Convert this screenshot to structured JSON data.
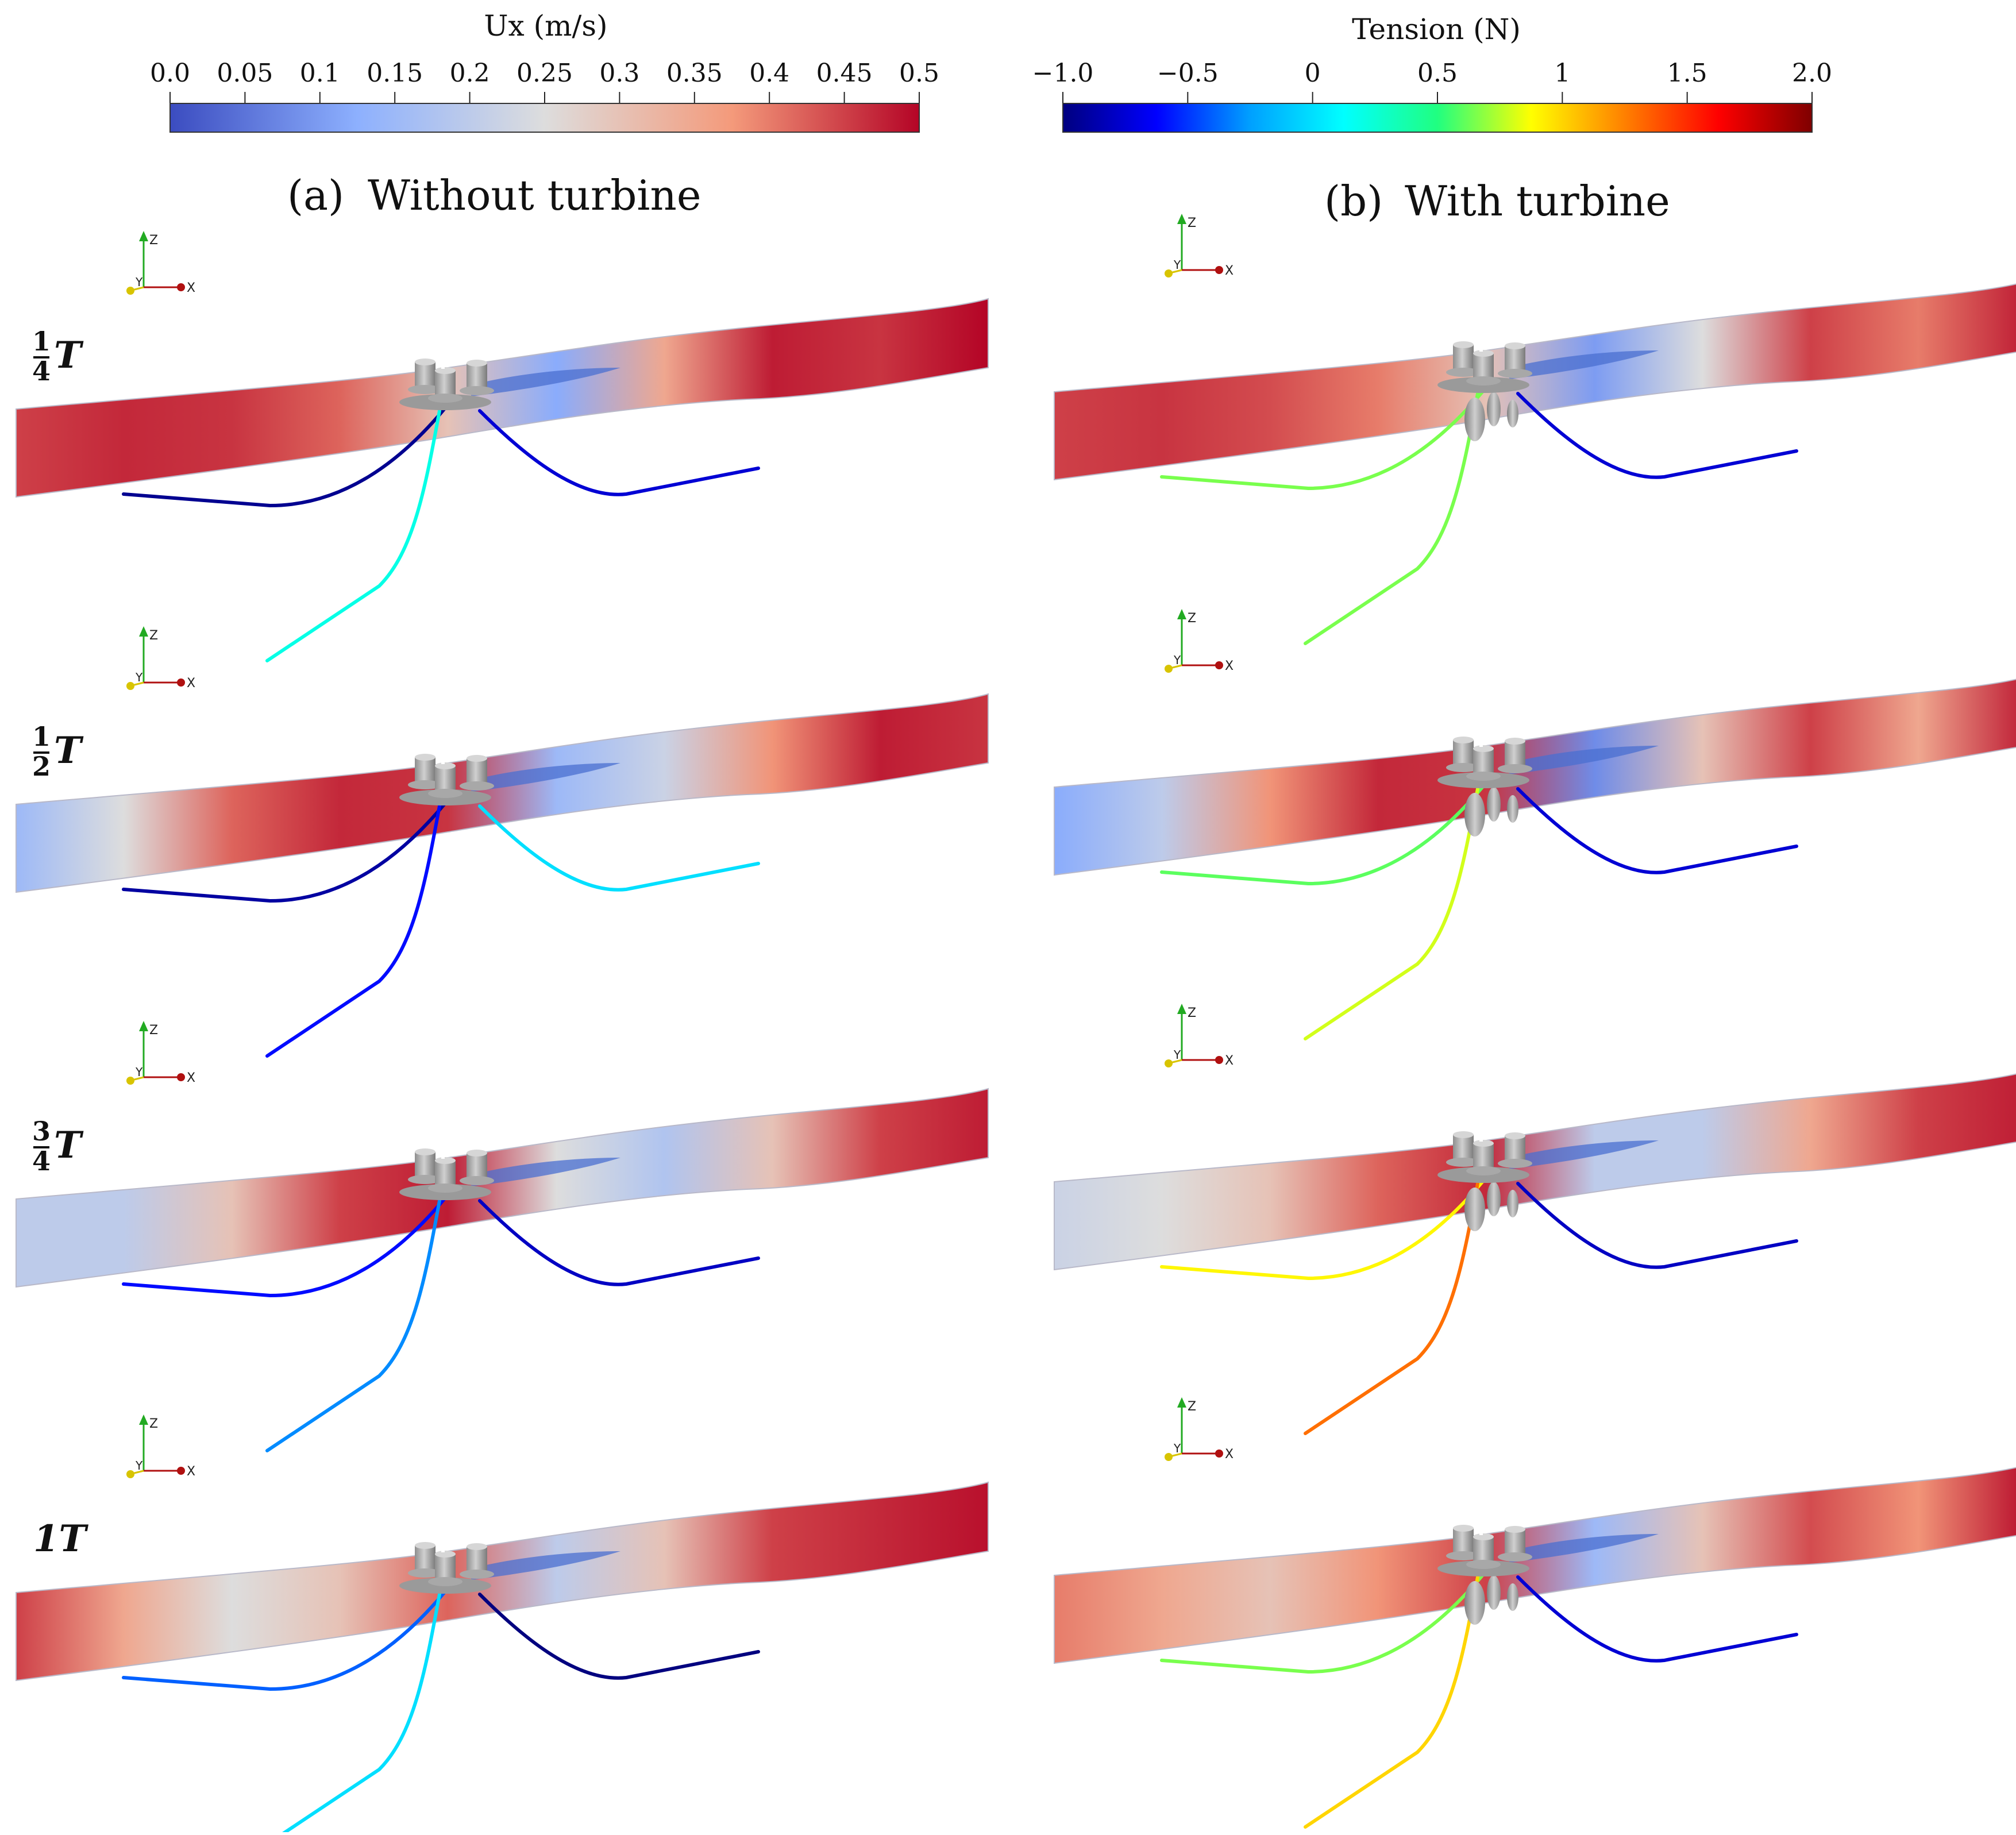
{
  "colorbars": [
    {
      "title": "Ux (m/s)",
      "ticks": [
        "0.0",
        "0.05",
        "0.1",
        "0.15",
        "0.2",
        "0.25",
        "0.3",
        "0.35",
        "0.4",
        "0.45",
        "0.5"
      ],
      "range": [
        0,
        0.5
      ],
      "colormap": "cool-to-warm",
      "stops": [
        "#3b4cc0",
        "#8db0fe",
        "#dddddd",
        "#f49a7b",
        "#b40426"
      ]
    },
    {
      "title": "Tension (N)",
      "ticks": [
        "−1.0",
        "−0.5",
        "0",
        "0.5",
        "1",
        "1.5",
        "2.0"
      ],
      "range": [
        -1.0,
        2.0
      ],
      "colormap": "jet",
      "stops": [
        "#00007f",
        "#0000ff",
        "#00a0ff",
        "#00ffff",
        "#20ff80",
        "#ffff00",
        "#ff8000",
        "#ff0000",
        "#7f0000"
      ]
    }
  ],
  "panels": [
    {
      "label": "(a)",
      "title": "Without turbine",
      "turbine": false,
      "snapshots": [
        {
          "time_num": "1",
          "time_den": "4",
          "suffix": "T",
          "line_tension": [
            -0.95,
            0.2,
            -0.6,
            -0.75
          ]
        },
        {
          "time_num": "1",
          "time_den": "2",
          "suffix": "T",
          "line_tension": [
            -0.9,
            -0.6,
            -0.7,
            0.0
          ]
        },
        {
          "time_num": "3",
          "time_den": "4",
          "suffix": "T",
          "line_tension": [
            -0.6,
            -0.3,
            -0.3,
            -0.8
          ]
        },
        {
          "time_num": "",
          "time_den": "",
          "suffix": "1T",
          "line_tension": [
            -0.4,
            0.0,
            -0.1,
            -1.0
          ]
        }
      ]
    },
    {
      "label": "(b)",
      "title": "With turbine",
      "turbine": true,
      "snapshots": [
        {
          "time_num": "1",
          "time_den": "4",
          "suffix": "T",
          "line_tension": [
            0.65,
            0.65,
            0.65,
            -0.75
          ]
        },
        {
          "time_num": "1",
          "time_den": "2",
          "suffix": "T",
          "line_tension": [
            0.6,
            0.8,
            0.6,
            -0.75
          ]
        },
        {
          "time_num": "3",
          "time_den": "4",
          "suffix": "T",
          "line_tension": [
            0.9,
            1.3,
            1.0,
            -0.8
          ]
        },
        {
          "time_num": "",
          "time_den": "",
          "suffix": "1T",
          "line_tension": [
            0.65,
            1.0,
            0.95,
            -0.75
          ]
        }
      ]
    }
  ],
  "triad": {
    "z": "Z",
    "y": "Y",
    "x": "X",
    "z_color": "#22aa22",
    "y_color": "#d8c400",
    "x_color": "#b01010"
  }
}
